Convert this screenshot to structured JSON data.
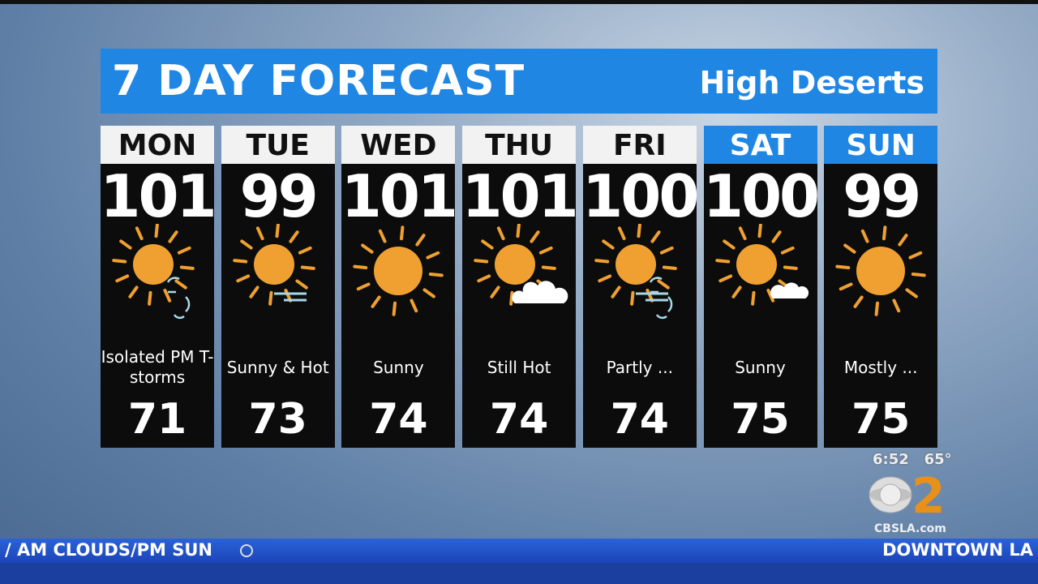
{
  "title": "7 DAY FORECAST",
  "region": "High Deserts",
  "colors": {
    "accent": "#1f86e4",
    "sun": "#f0a030",
    "precip": "#a8d8e8"
  },
  "days": [
    {
      "day": "MON",
      "high": "101",
      "desc": "Isolated PM T-storms",
      "low": "71",
      "weekend": false,
      "icon": "sun-storm-icon"
    },
    {
      "day": "TUE",
      "high": "99",
      "desc": "Sunny & Hot",
      "low": "73",
      "weekend": false,
      "icon": "sun-wind-icon"
    },
    {
      "day": "WED",
      "high": "101",
      "desc": "Sunny",
      "low": "74",
      "weekend": false,
      "icon": "sun-icon"
    },
    {
      "day": "THU",
      "high": "101",
      "desc": "Still Hot",
      "low": "74",
      "weekend": false,
      "icon": "sun-cloud-icon"
    },
    {
      "day": "FRI",
      "high": "100",
      "desc": "Partly ...",
      "low": "74",
      "weekend": false,
      "icon": "sun-storm-wind-icon"
    },
    {
      "day": "SAT",
      "high": "100",
      "desc": "Sunny",
      "low": "75",
      "weekend": true,
      "icon": "sun-small-cloud-icon"
    },
    {
      "day": "SUN",
      "high": "99",
      "desc": "Mostly ...",
      "low": "75",
      "weekend": true,
      "icon": "sun-icon"
    }
  ],
  "clock": {
    "time": "6:52",
    "temp": "65°"
  },
  "logo": {
    "text": "CBSLA.com",
    "number": "2"
  },
  "ticker": {
    "left": "/ AM CLOUDS/PM SUN",
    "right": "DOWNTOWN LA"
  }
}
